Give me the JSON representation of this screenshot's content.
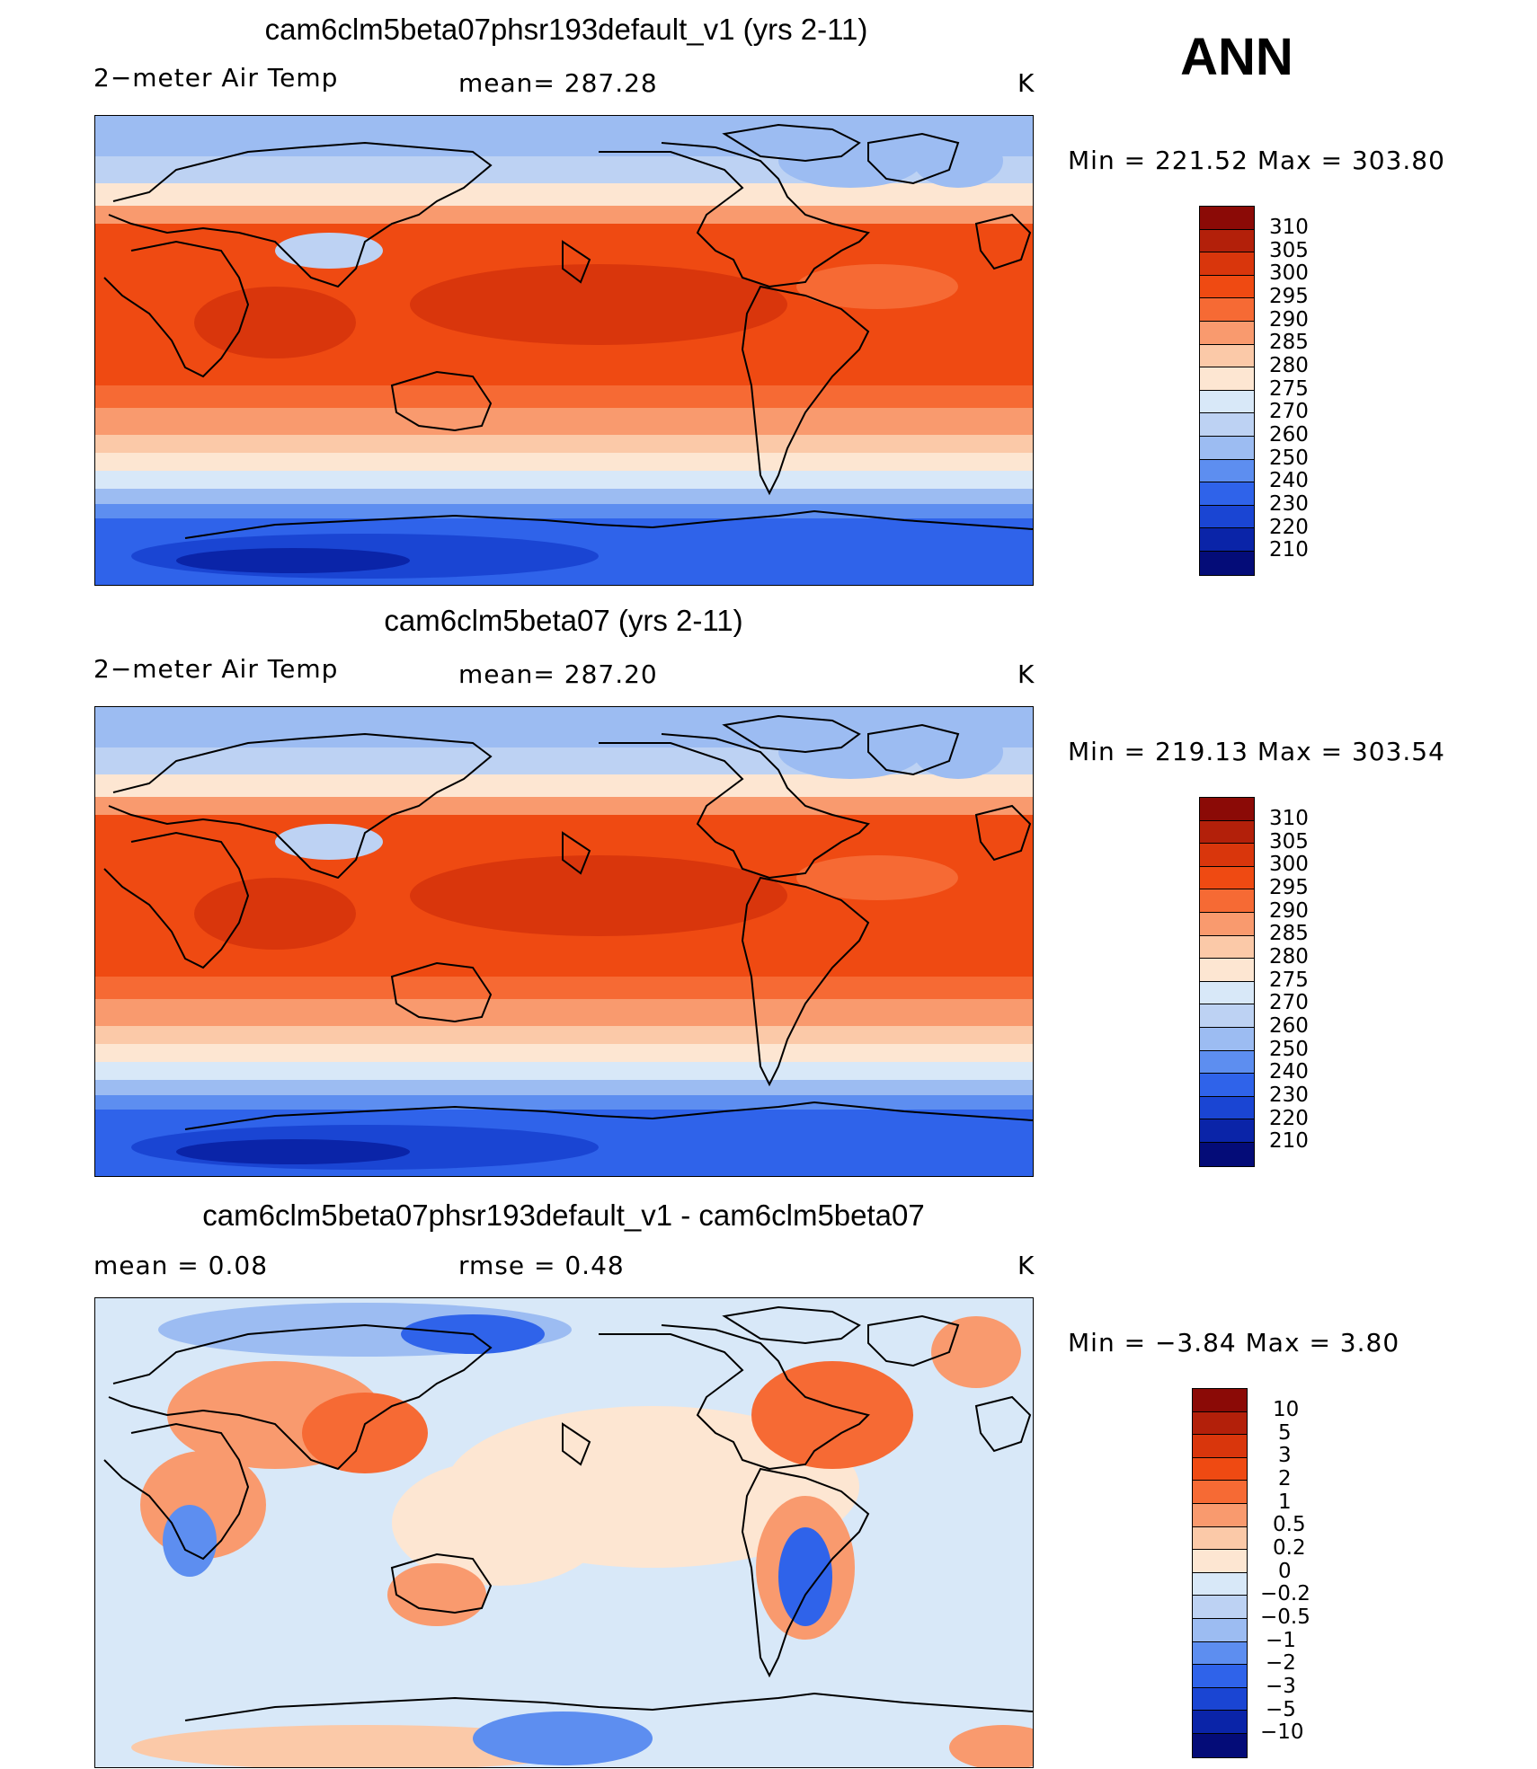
{
  "season": "ANN",
  "units": "K",
  "panel1": {
    "title": "cam6clm5beta07phsr193default_v1 (yrs 2-11)",
    "var_label": "2−meter Air Temp",
    "stat_text": "mean=  287.28",
    "minmax_text": "Min  =  221.52  Max  =  303.80"
  },
  "panel2": {
    "title": "cam6clm5beta07 (yrs 2-11)",
    "var_label": "2−meter Air Temp",
    "stat_text": "mean=  287.20",
    "minmax_text": "Min  =  219.13  Max  =  303.54"
  },
  "panel3": {
    "title": "cam6clm5beta07phsr193default_v1 - cam6clm5beta07",
    "mean_text": "mean  =     0.08",
    "rmse_text": "rmse  =     0.48",
    "minmax_text": "Min  =    −3.84  Max  =      3.80"
  },
  "temp_levels": [
    "310",
    "305",
    "300",
    "295",
    "290",
    "285",
    "280",
    "275",
    "270",
    "260",
    "250",
    "240",
    "230",
    "220",
    "210"
  ],
  "temp_colors": [
    "#8b0a06",
    "#b3200a",
    "#d9360c",
    "#ef4a12",
    "#f66a34",
    "#f99a6e",
    "#fbc9a8",
    "#fde6d2",
    "#d8e8f8",
    "#bdd2f3",
    "#9cbcf2",
    "#5d8ef0",
    "#2f63ea",
    "#1a45d3",
    "#0a24a8",
    "#040c78"
  ],
  "diff_levels": [
    "10",
    "5",
    "3",
    "2",
    "1",
    "0.5",
    "0.2",
    "0",
    "−0.2",
    "−0.5",
    "−1",
    "−2",
    "−3",
    "−5",
    "−10"
  ],
  "diff_colors": [
    "#8b0a06",
    "#b3200a",
    "#d9360c",
    "#ef4a12",
    "#f66a34",
    "#f99a6e",
    "#fbc9a8",
    "#fde6d2",
    "#d8e8f8",
    "#bdd2f3",
    "#9cbcf2",
    "#5d8ef0",
    "#2f63ea",
    "#1a45d3",
    "#0a24a8",
    "#040c78"
  ]
}
